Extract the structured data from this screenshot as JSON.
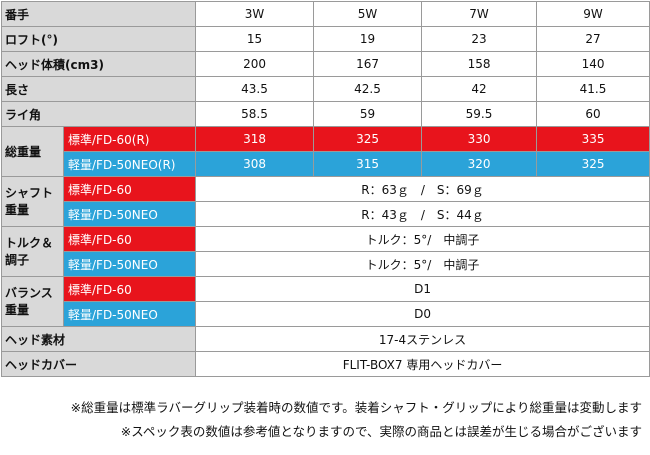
{
  "colors": {
    "header_bg": "#d9d9d9",
    "standard_red": "#e8141c",
    "light_blue": "#2ba3d9",
    "border": "#9a9a9a"
  },
  "header": {
    "label": "番手",
    "models": [
      "3W",
      "5W",
      "7W",
      "9W"
    ]
  },
  "rows": {
    "loft": {
      "label": "ロフト(°)",
      "values": [
        "15",
        "19",
        "23",
        "27"
      ]
    },
    "volume": {
      "label": "ヘッド体積(cm3)",
      "values": [
        "200",
        "167",
        "158",
        "140"
      ]
    },
    "length": {
      "label": "長さ",
      "values": [
        "43.5",
        "42.5",
        "42",
        "41.5"
      ]
    },
    "lie": {
      "label": "ライ角",
      "values": [
        "58.5",
        "59",
        "59.5",
        "60"
      ]
    },
    "total_weight": {
      "label": "総重量",
      "standard": {
        "label": "標準/FD-60(R)",
        "values": [
          "318",
          "325",
          "330",
          "335"
        ]
      },
      "light": {
        "label": "軽量/FD-50NEO(R)",
        "values": [
          "308",
          "315",
          "320",
          "325"
        ]
      }
    },
    "shaft_weight": {
      "label_line1": "シャフト",
      "label_line2": "重量",
      "standard": {
        "label": "標準/FD-60",
        "value": "R：63ｇ　/　S：69ｇ"
      },
      "light": {
        "label": "軽量/FD-50NEO",
        "value": "R：43ｇ　/　S：44ｇ"
      }
    },
    "torque": {
      "label_line1": "トルク＆",
      "label_line2": "調子",
      "standard": {
        "label": "標準/FD-60",
        "value": "トルク：5°/　中調子"
      },
      "light": {
        "label": "軽量/FD-50NEO",
        "value": "トルク：5°/　中調子"
      }
    },
    "balance": {
      "label_line1": "バランス",
      "label_line2": "重量",
      "standard": {
        "label": "標準/FD-60",
        "value": "D1"
      },
      "light": {
        "label": "軽量/FD-50NEO",
        "value": "D0"
      }
    },
    "head_material": {
      "label": "ヘッド素材",
      "value": "17-4ステンレス"
    },
    "head_cover": {
      "label": "ヘッドカバー",
      "value": "FLIT-BOX7 専用ヘッドカバー"
    }
  },
  "notes": [
    "※総重量は標準ラバーグリップ装着時の数値です。装着シャフト・グリップにより総重量は変動します",
    "※スペック表の数値は参考値となりますので、実際の商品とは誤差が生じる場合がございます"
  ]
}
